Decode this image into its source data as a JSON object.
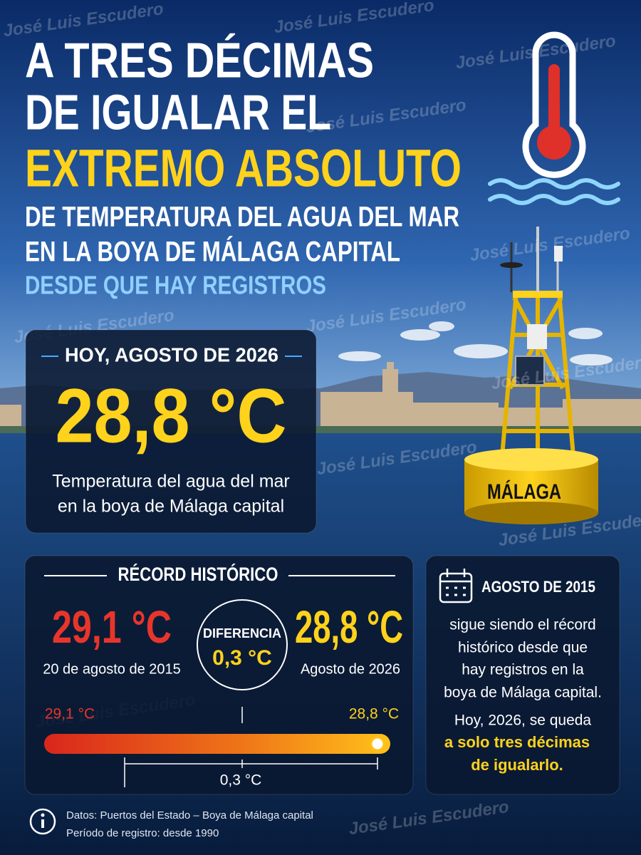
{
  "header": {
    "title_lines": [
      "A TRES DÉCIMAS",
      "DE IGUALAR EL",
      "EXTREMO ABSOLUTO",
      "DE TEMPERATURA DEL AGUA DEL MAR",
      "EN LA BOYA DE MÁLAGA CAPITAL",
      "DESDE QUE HAY REGISTROS"
    ]
  },
  "today_card": {
    "heading": "HOY, AGOSTO DE 2026",
    "value": "28,8 °C",
    "caption_lines": [
      "Temperatura del agua del mar",
      "en la boya de Málaga capital"
    ]
  },
  "buoy_label": "MÁLAGA",
  "record_card": {
    "heading": "RÉCORD HISTÓRICO",
    "record": {
      "value": "29,1 °C",
      "date": "20 de agosto de 2015"
    },
    "difference": {
      "label": "DIFERENCIA",
      "value": "0,3 °C"
    },
    "current": {
      "value": "28,8 °C",
      "date": "Agosto de 2026"
    },
    "bar": {
      "left_label": "29,1 °C",
      "right_label": "28,8 °C",
      "gap_label": "0,3 °C"
    }
  },
  "side_card": {
    "heading": "AGOSTO DE 2015",
    "body_lines": [
      "sigue siendo el récord",
      "histórico desde que",
      "hay registros en la",
      "boya de Málaga capital."
    ],
    "closing_line": "Hoy, 2026, se queda",
    "highlight_lines": [
      "a solo tres décimas",
      "de igualarlo."
    ]
  },
  "footer": {
    "source_lines": [
      "Datos: Puertos del Estado – Boya de Málaga capital",
      "Período de registro: desde 1990"
    ]
  },
  "watermark": "José Luis Escudero"
}
